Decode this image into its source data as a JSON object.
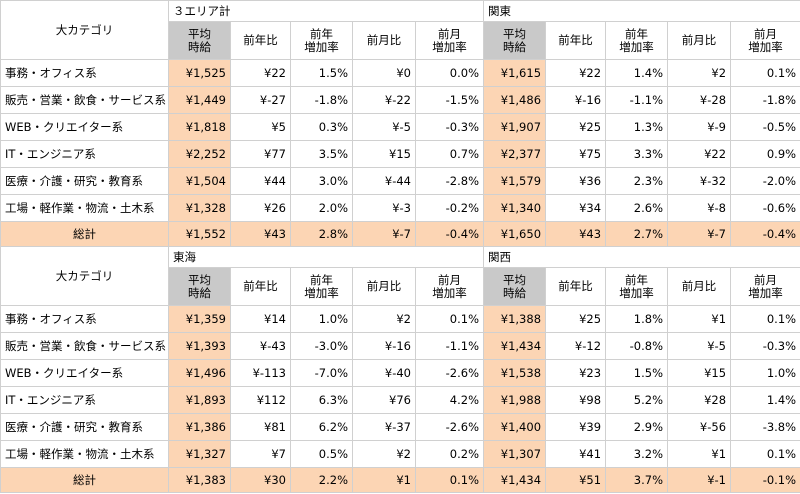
{
  "cat_header": "大カテゴリ",
  "sub_headers": [
    "平均\n時給",
    "前年比",
    "前年\n増加率",
    "前月比",
    "前月\n増加率"
  ],
  "blocks": [
    {
      "left_region": "３エリア計",
      "right_region": "関東",
      "rows": [
        {
          "label": "事務・オフィス系",
          "left": [
            "¥1,525",
            "¥22",
            "1.5%",
            "¥0",
            "0.0%"
          ],
          "right": [
            "¥1,615",
            "¥22",
            "1.4%",
            "¥2",
            "0.1%"
          ]
        },
        {
          "label": "販売・営業・飲食・サービス系",
          "left": [
            "¥1,449",
            "¥-27",
            "-1.8%",
            "¥-22",
            "-1.5%"
          ],
          "right": [
            "¥1,486",
            "¥-16",
            "-1.1%",
            "¥-28",
            "-1.8%"
          ]
        },
        {
          "label": "WEB・クリエイター系",
          "left": [
            "¥1,818",
            "¥5",
            "0.3%",
            "¥-5",
            "-0.3%"
          ],
          "right": [
            "¥1,907",
            "¥25",
            "1.3%",
            "¥-9",
            "-0.5%"
          ]
        },
        {
          "label": "IT・エンジニア系",
          "left": [
            "¥2,252",
            "¥77",
            "3.5%",
            "¥15",
            "0.7%"
          ],
          "right": [
            "¥2,377",
            "¥75",
            "3.3%",
            "¥22",
            "0.9%"
          ]
        },
        {
          "label": "医療・介護・研究・教育系",
          "left": [
            "¥1,504",
            "¥44",
            "3.0%",
            "¥-44",
            "-2.8%"
          ],
          "right": [
            "¥1,579",
            "¥36",
            "2.3%",
            "¥-32",
            "-2.0%"
          ]
        },
        {
          "label": "工場・軽作業・物流・土木系",
          "left": [
            "¥1,328",
            "¥26",
            "2.0%",
            "¥-3",
            "-0.2%"
          ],
          "right": [
            "¥1,340",
            "¥34",
            "2.6%",
            "¥-8",
            "-0.6%"
          ]
        }
      ],
      "total": {
        "label": "総計",
        "left": [
          "¥1,552",
          "¥43",
          "2.8%",
          "¥-7",
          "-0.4%"
        ],
        "right": [
          "¥1,650",
          "¥43",
          "2.7%",
          "¥-7",
          "-0.4%"
        ]
      }
    },
    {
      "left_region": "東海",
      "right_region": "関西",
      "rows": [
        {
          "label": "事務・オフィス系",
          "left": [
            "¥1,359",
            "¥14",
            "1.0%",
            "¥2",
            "0.1%"
          ],
          "right": [
            "¥1,388",
            "¥25",
            "1.8%",
            "¥1",
            "0.1%"
          ]
        },
        {
          "label": "販売・営業・飲食・サービス系",
          "left": [
            "¥1,393",
            "¥-43",
            "-3.0%",
            "¥-16",
            "-1.1%"
          ],
          "right": [
            "¥1,434",
            "¥-12",
            "-0.8%",
            "¥-5",
            "-0.3%"
          ]
        },
        {
          "label": "WEB・クリエイター系",
          "left": [
            "¥1,496",
            "¥-113",
            "-7.0%",
            "¥-40",
            "-2.6%"
          ],
          "right": [
            "¥1,538",
            "¥23",
            "1.5%",
            "¥15",
            "1.0%"
          ]
        },
        {
          "label": "IT・エンジニア系",
          "left": [
            "¥1,893",
            "¥112",
            "6.3%",
            "¥76",
            "4.2%"
          ],
          "right": [
            "¥1,988",
            "¥98",
            "5.2%",
            "¥28",
            "1.4%"
          ]
        },
        {
          "label": "医療・介護・研究・教育系",
          "left": [
            "¥1,386",
            "¥81",
            "6.2%",
            "¥-37",
            "-2.6%"
          ],
          "right": [
            "¥1,400",
            "¥39",
            "2.9%",
            "¥-56",
            "-3.8%"
          ]
        },
        {
          "label": "工場・軽作業・物流・土木系",
          "left": [
            "¥1,327",
            "¥7",
            "0.5%",
            "¥2",
            "0.2%"
          ],
          "right": [
            "¥1,307",
            "¥41",
            "3.2%",
            "¥1",
            "0.1%"
          ]
        }
      ],
      "total": {
        "label": "総計",
        "left": [
          "¥1,383",
          "¥30",
          "2.2%",
          "¥1",
          "0.1%"
        ],
        "right": [
          "¥1,434",
          "¥51",
          "3.7%",
          "¥-1",
          "-0.1%"
        ]
      }
    }
  ],
  "colors": {
    "avg_bg": "#fcd5b4",
    "avg_header_bg": "#c9c9c9",
    "negative_text": "#d9262c",
    "total_bg": "#fcd5b4"
  }
}
